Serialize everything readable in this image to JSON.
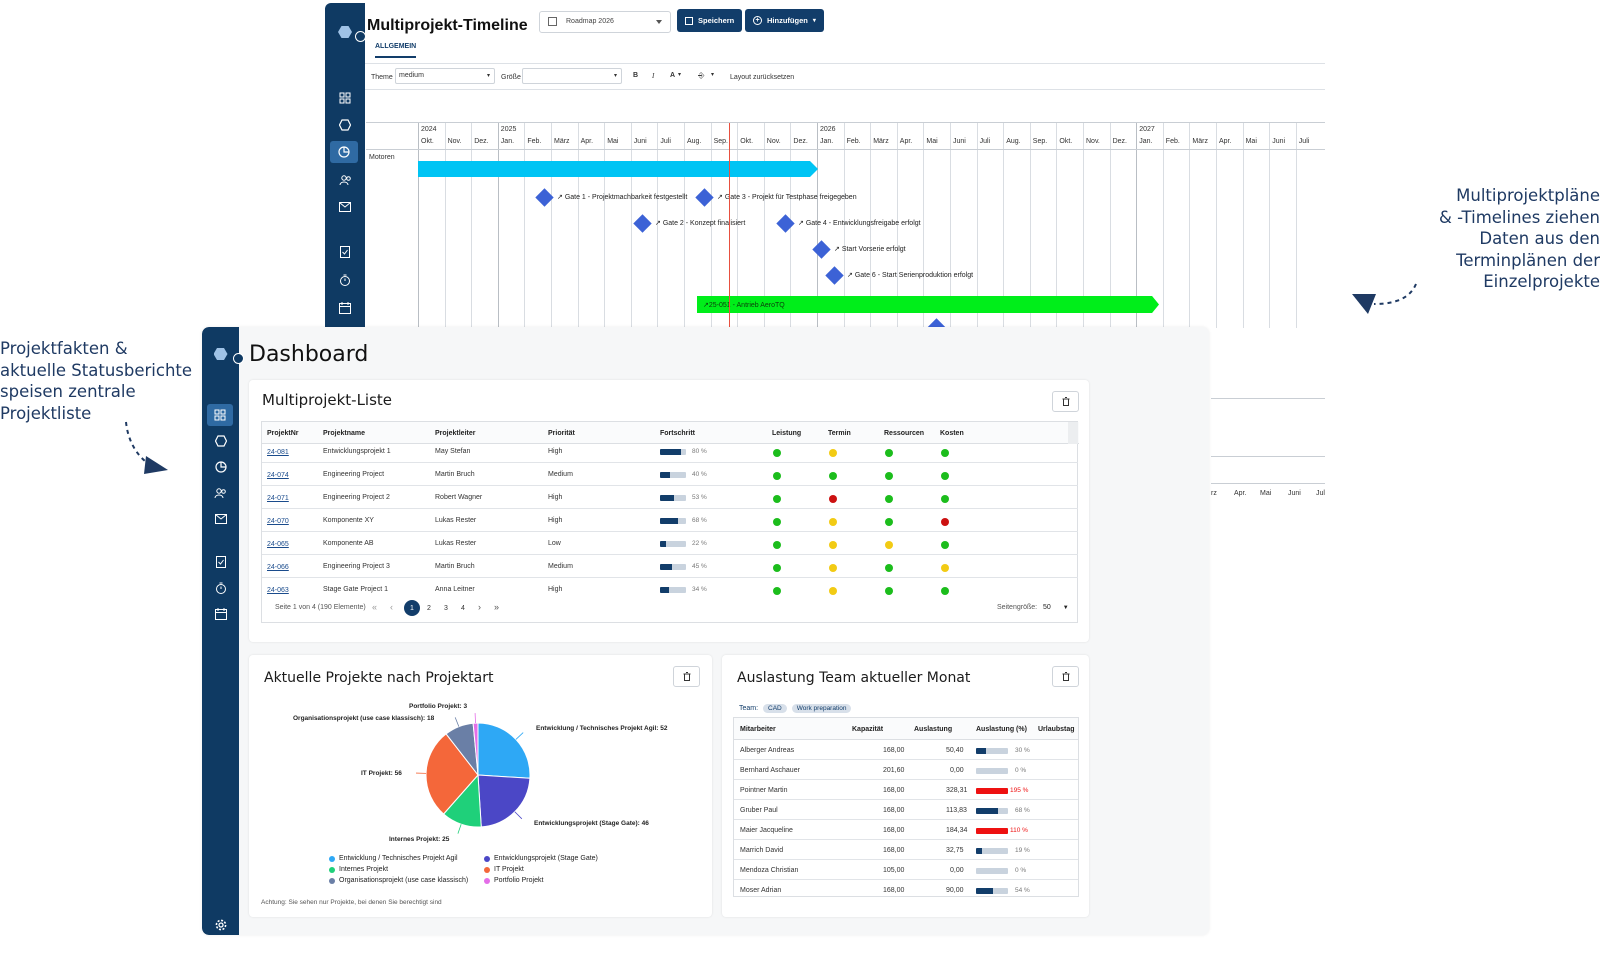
{
  "annotations": {
    "left": [
      "Projektfakten &",
      "aktuelle Statusberichte",
      "speisen zentrale",
      "Projektliste"
    ],
    "right": [
      "Multiprojektpläne",
      "& -Timelines ziehen",
      "Daten aus den",
      "Terminplänen der",
      "Einzelprojekte"
    ]
  },
  "timeline": {
    "title": "Multiprojekt-Timeline",
    "select_value": "Roadmap 2026",
    "save_label": "Speichern",
    "add_label": "Hinzufügen",
    "tab_label": "ALLGEMEIN",
    "toolbar": {
      "theme_label": "Theme",
      "theme_value": "medium",
      "size_label": "Größe",
      "size_value": "",
      "bold": "B",
      "italic": "I",
      "font_size": "A",
      "reset_label": "Layout zurücksetzen"
    },
    "years": [
      "2024",
      "2025",
      "2026",
      "2027"
    ],
    "months": [
      "Okt.",
      "Nov.",
      "Dez.",
      "Jan.",
      "Feb.",
      "März",
      "Apr.",
      "Mai",
      "Juni",
      "Juli",
      "Aug.",
      "Sep.",
      "Okt.",
      "Nov.",
      "Dez.",
      "Jan.",
      "Feb.",
      "März",
      "Apr.",
      "Mai",
      "Juni",
      "Juli",
      "Aug.",
      "Sep.",
      "Okt.",
      "Nov.",
      "Dez.",
      "Jan.",
      "Feb.",
      "März",
      "Apr.",
      "Mai",
      "Juni",
      "Juli"
    ],
    "row_label": "Motoren",
    "milestones": [
      "Gate 1 - Projektmachbarkeit festgestellt",
      "Gate 3 - Projekt für Testphase freigegeben",
      "Gate 2 - Konzept finalisiert",
      "Gate 4 - Entwicklungsfreigabe erfolgt",
      "Start Vorserie erfolgt",
      "Gate 6 - Start Serienproduktion erfolgt"
    ],
    "green_bar_label": "25-051 - Antrieb AeroTQ",
    "lower_months": [
      "rz",
      "Apr.",
      "Mai",
      "Juni",
      "Juli"
    ],
    "colors": {
      "cyan_bar": "#00c4f4",
      "green_bar": "#00ee1a",
      "milestone": "#3c62d6",
      "today": "#e8503f"
    }
  },
  "dashboard": {
    "title": "Dashboard",
    "project_list": {
      "title": "Multiprojekt-Liste",
      "headers": [
        "ProjektNr",
        "Projektname",
        "Projektleiter",
        "Priorität",
        "Fortschritt",
        "Leistung",
        "Termin",
        "Ressourcen",
        "Kosten"
      ],
      "rows": [
        {
          "nr": "24-081",
          "name": "Entwicklungsprojekt 1",
          "lead": "May Stefan",
          "prio": "High",
          "progress": 80,
          "progress_text": "80 %",
          "status": [
            "green",
            "yellow",
            "green",
            "green"
          ]
        },
        {
          "nr": "24-074",
          "name": "Engineering Project",
          "lead": "Martin Bruch",
          "prio": "Medium",
          "progress": 40,
          "progress_text": "40 %",
          "status": [
            "green",
            "green",
            "green",
            "green"
          ]
        },
        {
          "nr": "24-071",
          "name": "Engineering Project 2",
          "lead": "Robert Wagner",
          "prio": "High",
          "progress": 53,
          "progress_text": "53 %",
          "status": [
            "green",
            "red",
            "green",
            "green"
          ]
        },
        {
          "nr": "24-070",
          "name": "Komponente XY",
          "lead": "Lukas Rester",
          "prio": "High",
          "progress": 68,
          "progress_text": "68 %",
          "status": [
            "green",
            "yellow",
            "green",
            "red"
          ]
        },
        {
          "nr": "24-065",
          "name": "Komponente AB",
          "lead": "Lukas Rester",
          "prio": "Low",
          "progress": 22,
          "progress_text": "22 %",
          "status": [
            "green",
            "yellow",
            "yellow",
            "green"
          ]
        },
        {
          "nr": "24-066",
          "name": "Engineering Project 3",
          "lead": "Martin Bruch",
          "prio": "Medium",
          "progress": 45,
          "progress_text": "45 %",
          "status": [
            "green",
            "yellow",
            "green",
            "yellow"
          ]
        },
        {
          "nr": "24-063",
          "name": "Stage Gate Project 1",
          "lead": "Anna Leitner",
          "prio": "High",
          "progress": 34,
          "progress_text": "34 %",
          "status": [
            "green",
            "yellow",
            "green",
            "green"
          ]
        }
      ],
      "pager_text": "Seite 1 von 4 (190 Elemente)",
      "pages": [
        "1",
        "2",
        "3",
        "4"
      ],
      "page_size_label": "Seitengröße:",
      "page_size_value": "50"
    },
    "pie_card": {
      "title": "Aktuelle Projekte nach Projektart",
      "footnote": "Achtung: Sie sehen nur Projekte, bei denen Sie berechtigt sind"
    },
    "team_card": {
      "title": "Auslastung Team aktueller Monat",
      "team_label": "Team:",
      "chips": [
        "CAD",
        "Work preparation"
      ],
      "headers": [
        "Mitarbeiter",
        "Kapazität",
        "Auslastung",
        "Auslastung (%)",
        "Urlaubstag"
      ],
      "rows": [
        {
          "name": "Alberger Andreas",
          "cap": "168,00",
          "load": "50,40",
          "pct": 30,
          "pct_text": "30 %",
          "over": false
        },
        {
          "name": "Bernhard Aschauer",
          "cap": "201,60",
          "load": "0,00",
          "pct": 0,
          "pct_text": "0 %",
          "over": false
        },
        {
          "name": "Pointner Martin",
          "cap": "168,00",
          "load": "328,31",
          "pct": 100,
          "pct_text": "195 %",
          "over": true
        },
        {
          "name": "Gruber Paul",
          "cap": "168,00",
          "load": "113,83",
          "pct": 68,
          "pct_text": "68 %",
          "over": false
        },
        {
          "name": "Maier Jacqueline",
          "cap": "168,00",
          "load": "184,34",
          "pct": 100,
          "pct_text": "110 %",
          "over": true
        },
        {
          "name": "Marrich David",
          "cap": "168,00",
          "load": "32,75",
          "pct": 19,
          "pct_text": "19 %",
          "over": false
        },
        {
          "name": "Mendoza Christian",
          "cap": "105,00",
          "load": "0,00",
          "pct": 0,
          "pct_text": "0 %",
          "over": false
        },
        {
          "name": "Moser Adrian",
          "cap": "168,00",
          "load": "90,00",
          "pct": 54,
          "pct_text": "54 %",
          "over": false
        }
      ]
    },
    "status_colors": {
      "green": "#1cbd1c",
      "yellow": "#f2cb14",
      "red": "#cc1111"
    }
  },
  "chart_data": {
    "type": "pie",
    "title": "Aktuelle Projekte nach Projektart",
    "slices": [
      {
        "label": "Entwicklung / Technisches Projekt Agil",
        "value": 52,
        "color": "#2ea8f5"
      },
      {
        "label": "Entwicklungsprojekt (Stage Gate)",
        "value": 46,
        "color": "#4b47c6"
      },
      {
        "label": "Internes Projekt",
        "value": 25,
        "color": "#1fd07a"
      },
      {
        "label": "IT Projekt",
        "value": 56,
        "color": "#f4673a"
      },
      {
        "label": "Organisationsprojekt (use case klassisch)",
        "value": 18,
        "color": "#6a7fa6"
      },
      {
        "label": "Portfolio Projekt",
        "value": 3,
        "color": "#e46ee8"
      }
    ],
    "slice_labels": [
      "Entwicklung / Technisches Projekt Agil: 52",
      "Entwicklungsprojekt (Stage Gate): 46",
      "Internes Projekt: 25",
      "IT Projekt: 56",
      "Organisationsprojekt (use case klassisch): 18",
      "Portfolio Projekt: 3"
    ],
    "legend": [
      "Entwicklung / Technisches Projekt Agil",
      "Entwicklungsprojekt (Stage Gate)",
      "Internes Projekt",
      "IT Projekt",
      "Organisationsprojekt (use case klassisch)",
      "Portfolio Projekt"
    ],
    "legend_placement": "bottom"
  }
}
